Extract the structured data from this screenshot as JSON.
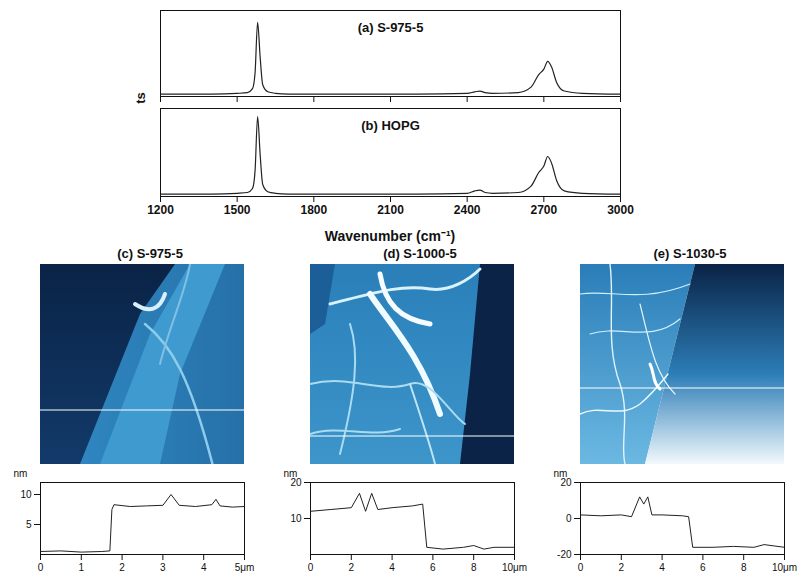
{
  "chart_data": [
    {
      "type": "line",
      "title": "(a) S-975-5",
      "ylabel": "CCD cts",
      "tick_labels": false,
      "color": "#222222",
      "x": [
        1200,
        1300,
        1400,
        1500,
        1540,
        1560,
        1570,
        1580,
        1590,
        1600,
        1620,
        1650,
        1700,
        1800,
        2000,
        2200,
        2400,
        2430,
        2450,
        2470,
        2500,
        2600,
        2650,
        2680,
        2700,
        2715,
        2730,
        2750,
        2780,
        2850,
        3000
      ],
      "values": [
        0.03,
        0.03,
        0.03,
        0.04,
        0.05,
        0.1,
        0.3,
        0.95,
        0.5,
        0.15,
        0.06,
        0.04,
        0.03,
        0.03,
        0.03,
        0.03,
        0.04,
        0.06,
        0.07,
        0.05,
        0.04,
        0.05,
        0.12,
        0.28,
        0.35,
        0.45,
        0.38,
        0.18,
        0.07,
        0.04,
        0.03
      ],
      "xlim": [
        1200,
        3000
      ],
      "xticks": [
        1200,
        1500,
        1800,
        2100,
        2400,
        2700,
        3000
      ],
      "ylim": [
        0,
        1.1
      ]
    },
    {
      "type": "line",
      "title": "(b) HOPG",
      "xlabel": "Wavenumber (cm⁻¹)",
      "tick_labels": "x",
      "color": "#222222",
      "x": [
        1200,
        1300,
        1400,
        1500,
        1540,
        1560,
        1570,
        1580,
        1590,
        1600,
        1620,
        1650,
        1700,
        1800,
        2000,
        2200,
        2400,
        2430,
        2450,
        2470,
        2500,
        2600,
        2650,
        2680,
        2700,
        2715,
        2730,
        2750,
        2780,
        2850,
        3000
      ],
      "values": [
        0.03,
        0.03,
        0.03,
        0.04,
        0.05,
        0.1,
        0.32,
        1.0,
        0.52,
        0.15,
        0.06,
        0.04,
        0.03,
        0.03,
        0.03,
        0.03,
        0.04,
        0.07,
        0.08,
        0.05,
        0.04,
        0.05,
        0.13,
        0.3,
        0.38,
        0.5,
        0.42,
        0.2,
        0.07,
        0.04,
        0.03
      ],
      "xlim": [
        1200,
        3000
      ],
      "xticks": [
        1200,
        1500,
        1800,
        2100,
        2400,
        2700,
        3000
      ],
      "ylim": [
        0,
        1.1
      ]
    },
    {
      "type": "line",
      "title": "(c) S-975-5",
      "ylabel": "nm",
      "color": "#222222",
      "x": [
        0,
        0.5,
        1.0,
        1.5,
        1.7,
        1.75,
        1.8,
        2.2,
        2.6,
        3.0,
        3.2,
        3.4,
        3.8,
        4.2,
        4.3,
        4.4,
        4.7,
        5.0
      ],
      "values": [
        0.5,
        0.6,
        0.4,
        0.5,
        0.6,
        7.5,
        8.3,
        8.0,
        8.1,
        8.2,
        10.0,
        8.2,
        8.0,
        8.3,
        9.2,
        8.1,
        7.9,
        8.0
      ],
      "xlim": [
        0,
        5
      ],
      "xticks": [
        0,
        1,
        2,
        3,
        4,
        {
          "value": 5,
          "label": "5μm"
        }
      ],
      "ylim": [
        0,
        12
      ],
      "yticks": [
        5,
        10
      ]
    },
    {
      "type": "line",
      "title": "(d) S-1000-5",
      "ylabel": "nm",
      "color": "#222222",
      "x": [
        0,
        1.0,
        2.0,
        2.4,
        2.7,
        3.0,
        3.3,
        4.0,
        5.0,
        5.5,
        5.7,
        6.5,
        7.5,
        8.0,
        8.5,
        9.0,
        10.0
      ],
      "values": [
        12,
        12.5,
        13,
        17,
        12,
        17,
        12.5,
        13,
        13.5,
        14,
        2,
        1.5,
        2,
        2.5,
        1.5,
        2,
        2
      ],
      "xlim": [
        0,
        10
      ],
      "xticks": [
        0,
        2,
        4,
        6,
        8,
        {
          "value": 10,
          "label": "10μm"
        }
      ],
      "ylim": [
        0,
        20
      ],
      "yticks": [
        10,
        20
      ]
    },
    {
      "type": "line",
      "title": "(e) S-1030-5",
      "ylabel": "nm",
      "color": "#222222",
      "x": [
        0,
        1.0,
        2.0,
        2.5,
        2.9,
        3.1,
        3.3,
        3.5,
        4.0,
        5.0,
        5.3,
        5.5,
        6.5,
        7.5,
        8.5,
        9.0,
        10.0
      ],
      "values": [
        2,
        1.5,
        2,
        1,
        12,
        8,
        12,
        2,
        2,
        1.5,
        1,
        -16,
        -16,
        -15.5,
        -16,
        -14.5,
        -16
      ],
      "xlim": [
        0,
        10
      ],
      "xticks": [
        0,
        2,
        4,
        6,
        8,
        {
          "value": 10,
          "label": "10μm"
        }
      ],
      "ylim": [
        -20,
        20
      ],
      "yticks": [
        -20,
        0,
        20
      ]
    }
  ]
}
